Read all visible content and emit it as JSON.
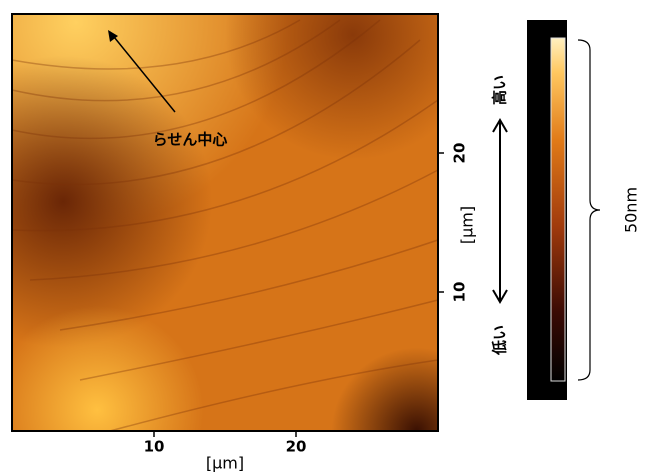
{
  "image": {
    "xlim": [
      0,
      30
    ],
    "ylim": [
      0,
      30
    ],
    "xticks": [
      10,
      20
    ],
    "yticks": [
      10,
      20
    ],
    "xlabel": "[µm]",
    "ylabel": "[µm]",
    "annotation": "らせん中心"
  },
  "colorbar": {
    "range_label": "50nm",
    "high": "高い",
    "low": "低い"
  }
}
